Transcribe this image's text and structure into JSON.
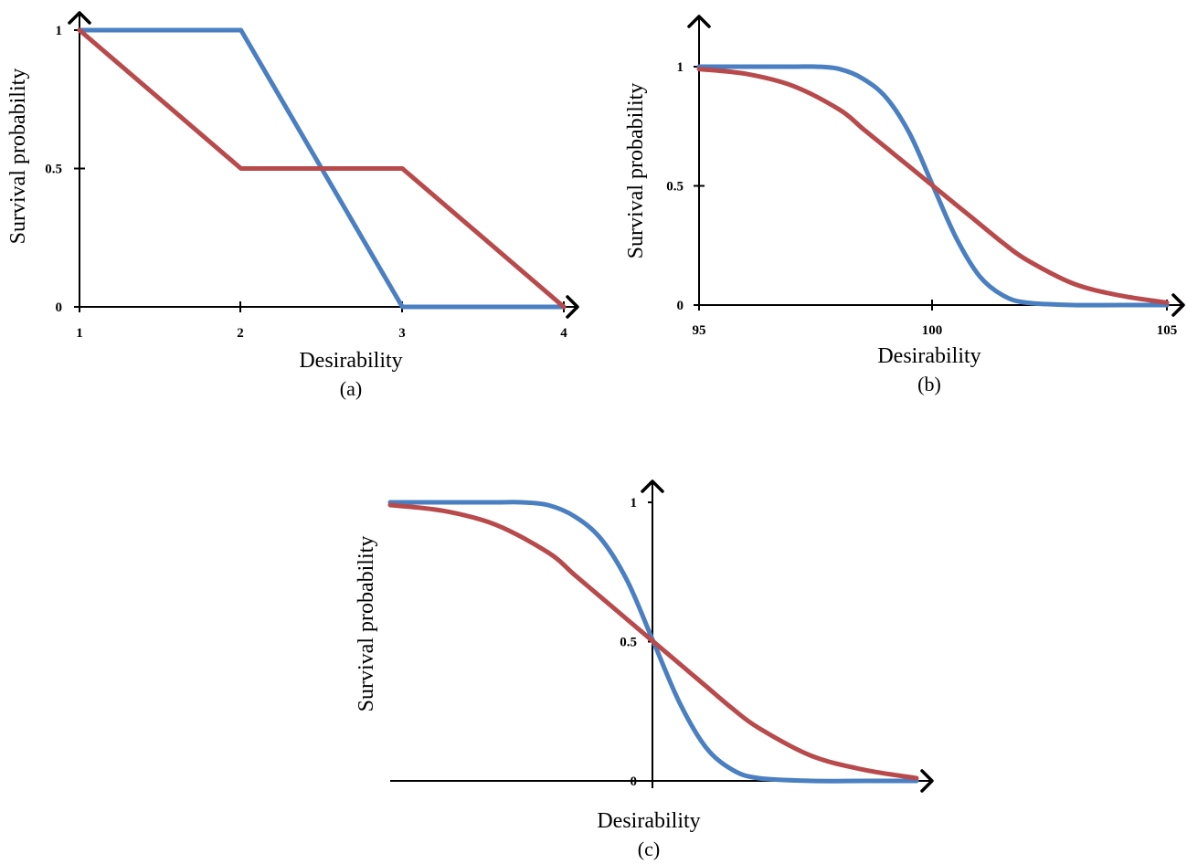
{
  "colors": {
    "blue": "#4a7fc1",
    "red": "#b84a4c",
    "axis": "#000000"
  },
  "chart_data": [
    {
      "type": "line",
      "caption": "(a)",
      "xlabel": "Desirability",
      "ylabel": "Survival probability",
      "xlim": [
        1,
        4
      ],
      "ylim": [
        0,
        1
      ],
      "x_ticks": [
        "1",
        "2",
        "3",
        "4"
      ],
      "y_ticks": [
        "0",
        "0.5",
        "1"
      ],
      "series": [
        {
          "color": "blue",
          "x": [
            1,
            2,
            3,
            4
          ],
          "y": [
            1,
            1,
            0,
            0
          ]
        },
        {
          "color": "red",
          "x": [
            1,
            2,
            3,
            4
          ],
          "y": [
            1,
            0.5,
            0.5,
            0
          ]
        }
      ]
    },
    {
      "type": "line",
      "caption": "(b)",
      "xlabel": "Desirability",
      "ylabel": "Survival probability",
      "xlim": [
        95,
        105
      ],
      "ylim": [
        0,
        1
      ],
      "x_ticks": [
        "95",
        "100",
        "105"
      ],
      "y_ticks": [
        "0",
        "0.5",
        "1"
      ],
      "series": [
        {
          "color": "blue",
          "x": [
            95,
            96,
            97,
            97.5,
            98,
            98.5,
            99,
            99.5,
            100,
            100.5,
            101,
            101.5,
            102,
            103,
            104,
            105
          ],
          "y": [
            1,
            1,
            1,
            1,
            0.99,
            0.95,
            0.87,
            0.72,
            0.5,
            0.28,
            0.12,
            0.04,
            0.01,
            0,
            0,
            0
          ]
        },
        {
          "color": "red",
          "x": [
            95,
            96,
            97,
            98,
            98.5,
            99,
            99.5,
            100,
            100.5,
            101,
            101.5,
            102,
            103,
            104,
            105
          ],
          "y": [
            0.99,
            0.97,
            0.92,
            0.82,
            0.74,
            0.66,
            0.58,
            0.5,
            0.42,
            0.34,
            0.26,
            0.19,
            0.09,
            0.04,
            0.01
          ]
        }
      ]
    },
    {
      "type": "line",
      "caption": "(c)",
      "xlabel": "Desirability",
      "ylabel": "Survival probability",
      "xlim": [
        -5,
        5
      ],
      "ylim": [
        0,
        1
      ],
      "x_ticks": [],
      "y_ticks": [
        "0",
        "0.5",
        "1"
      ],
      "series": [
        {
          "color": "blue",
          "x": [
            -5,
            -4,
            -3,
            -2.5,
            -2,
            -1.5,
            -1,
            -0.5,
            0,
            0.5,
            1,
            1.5,
            2,
            3,
            4,
            5
          ],
          "y": [
            1,
            1,
            1,
            1,
            0.99,
            0.95,
            0.87,
            0.72,
            0.5,
            0.28,
            0.12,
            0.04,
            0.01,
            0,
            0,
            0
          ]
        },
        {
          "color": "red",
          "x": [
            -5,
            -4,
            -3,
            -2,
            -1.5,
            -1,
            -0.5,
            0,
            0.5,
            1,
            1.5,
            2,
            3,
            4,
            5
          ],
          "y": [
            0.99,
            0.97,
            0.92,
            0.82,
            0.74,
            0.66,
            0.58,
            0.5,
            0.42,
            0.34,
            0.26,
            0.19,
            0.09,
            0.04,
            0.01
          ]
        }
      ]
    }
  ]
}
